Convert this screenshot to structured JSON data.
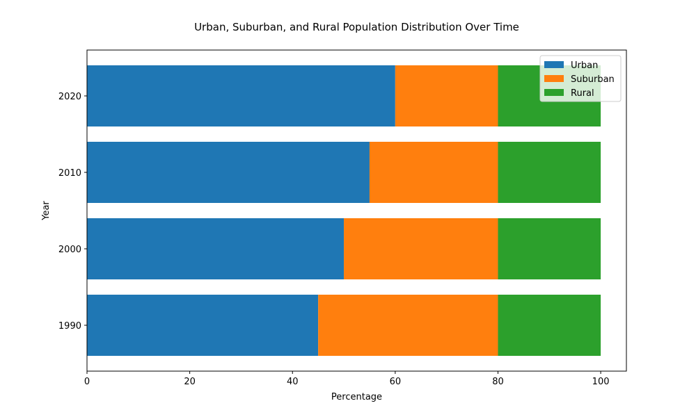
{
  "chart_data": {
    "type": "bar",
    "orientation": "horizontal",
    "stacked": true,
    "title": "Urban, Suburban, and Rural Population Distribution Over Time",
    "xlabel": "Percentage",
    "ylabel": "Year",
    "categories": [
      "1990",
      "2000",
      "2010",
      "2020"
    ],
    "series": [
      {
        "name": "Urban",
        "values": [
          45,
          50,
          55,
          60
        ],
        "color": "#1f77b4"
      },
      {
        "name": "Suburban",
        "values": [
          35,
          30,
          25,
          20
        ],
        "color": "#ff7f0e"
      },
      {
        "name": "Rural",
        "values": [
          20,
          20,
          20,
          20
        ],
        "color": "#2ca02c"
      }
    ],
    "xlim": [
      0,
      105
    ],
    "xticks": [
      0,
      20,
      40,
      60,
      80,
      100
    ],
    "grid": false,
    "legend_position": "top-right"
  }
}
